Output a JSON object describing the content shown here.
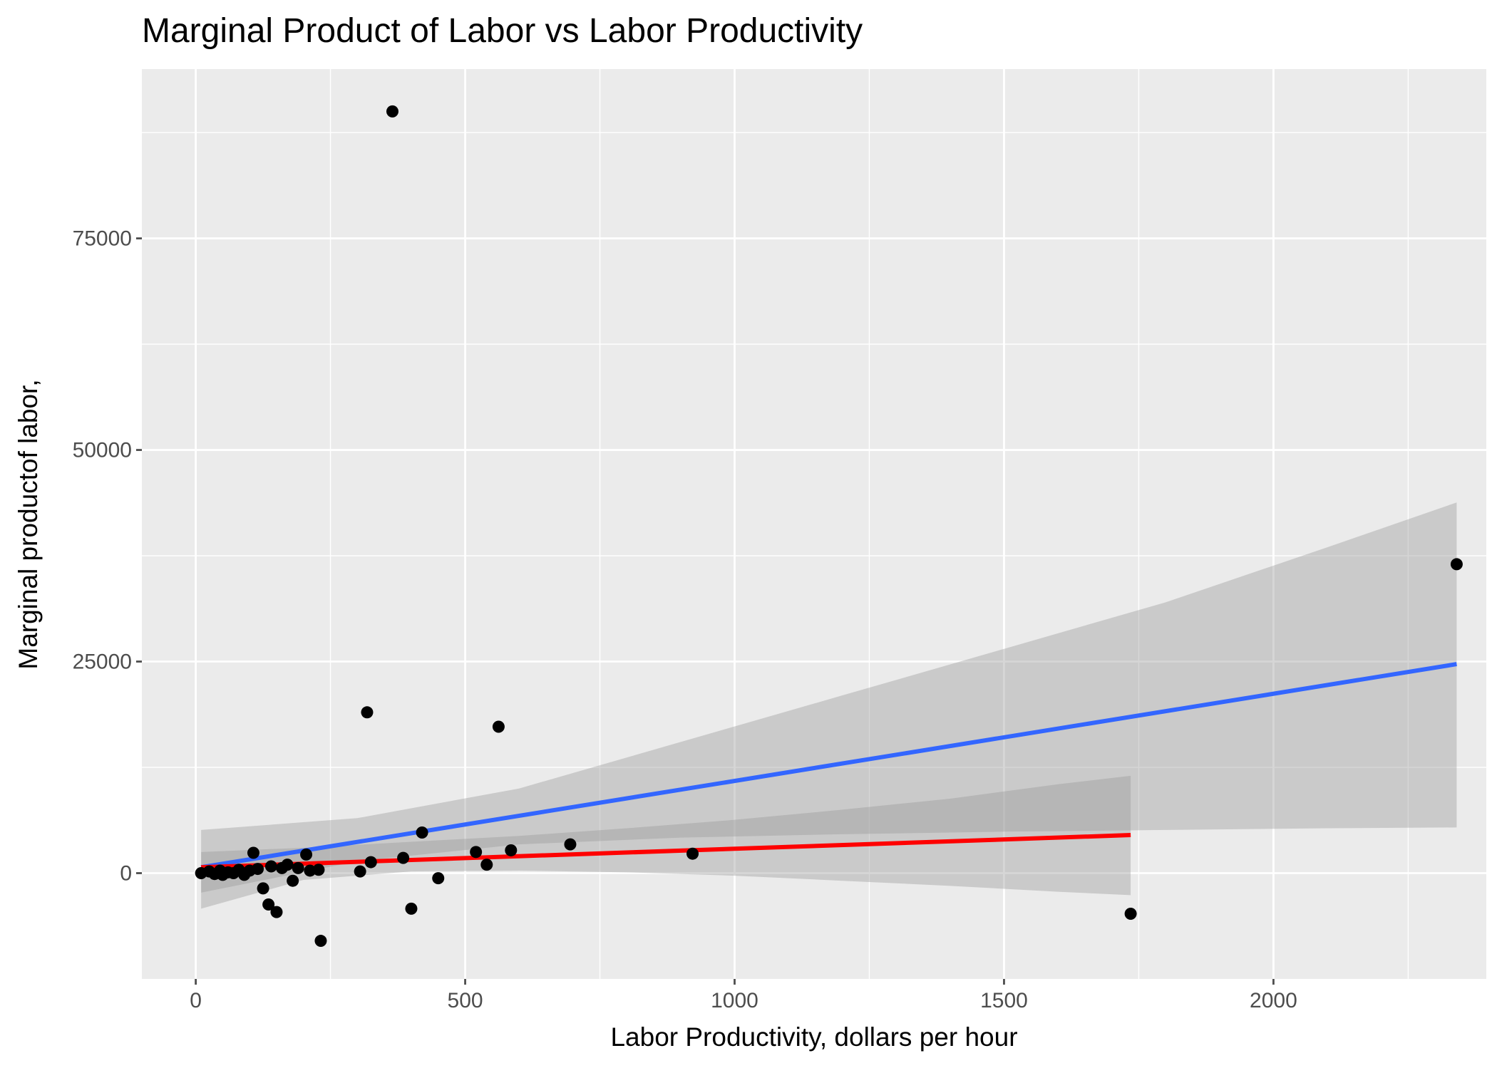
{
  "chart_data": {
    "type": "scatter",
    "title": "Marginal Product of Labor vs Labor Productivity",
    "xlabel": "Labor Productivity, dollars per hour",
    "ylabel": "Marginal productof labor,",
    "xlim": [
      -100,
      2395
    ],
    "ylim": [
      -12500,
      95000
    ],
    "x_ticks": [
      0,
      500,
      1000,
      1500,
      2000
    ],
    "x_tick_labels": [
      "0",
      "500",
      "1000",
      "1500",
      "2000"
    ],
    "y_ticks": [
      0,
      25000,
      50000,
      75000
    ],
    "y_tick_labels": [
      "0",
      "25000",
      "50000",
      "75000"
    ],
    "grid": true,
    "legend": "none",
    "colors": {
      "panel": "#EBEBEB",
      "grid": "#FFFFFF",
      "points": "#000000",
      "band": "#999999",
      "fit_blue": "#3366FF",
      "fit_red": "#FF0000",
      "tick": "#4D4D4D"
    },
    "points": [
      {
        "x": 10,
        "y": 0
      },
      {
        "x": 25,
        "y": 200
      },
      {
        "x": 35,
        "y": -100
      },
      {
        "x": 45,
        "y": 300
      },
      {
        "x": 50,
        "y": -200
      },
      {
        "x": 60,
        "y": 100
      },
      {
        "x": 70,
        "y": 0
      },
      {
        "x": 80,
        "y": 400
      },
      {
        "x": 90,
        "y": -200
      },
      {
        "x": 100,
        "y": 300
      },
      {
        "x": 107,
        "y": 2400
      },
      {
        "x": 115,
        "y": 500
      },
      {
        "x": 125,
        "y": -1800
      },
      {
        "x": 135,
        "y": -3700
      },
      {
        "x": 140,
        "y": 800
      },
      {
        "x": 150,
        "y": -4600
      },
      {
        "x": 160,
        "y": 600
      },
      {
        "x": 170,
        "y": 1000
      },
      {
        "x": 180,
        "y": -900
      },
      {
        "x": 190,
        "y": 600
      },
      {
        "x": 205,
        "y": 2200
      },
      {
        "x": 212,
        "y": 300
      },
      {
        "x": 228,
        "y": 400
      },
      {
        "x": 232,
        "y": -8000
      },
      {
        "x": 305,
        "y": 200
      },
      {
        "x": 318,
        "y": 19000
      },
      {
        "x": 325,
        "y": 1300
      },
      {
        "x": 365,
        "y": 90000
      },
      {
        "x": 385,
        "y": 1800
      },
      {
        "x": 400,
        "y": -4200
      },
      {
        "x": 420,
        "y": 4800
      },
      {
        "x": 450,
        "y": -600
      },
      {
        "x": 520,
        "y": 2500
      },
      {
        "x": 540,
        "y": 1000
      },
      {
        "x": 562,
        "y": 17300
      },
      {
        "x": 585,
        "y": 2700
      },
      {
        "x": 695,
        "y": 3400
      },
      {
        "x": 922,
        "y": 2300
      },
      {
        "x": 1735,
        "y": -4800
      },
      {
        "x": 2340,
        "y": 36500
      }
    ],
    "fits": [
      {
        "color": "blue",
        "x": [
          10,
          2340
        ],
        "y": [
          700,
          24700
        ],
        "band": {
          "x": [
            10,
            300,
            600,
            900,
            1200,
            1500,
            1800,
            2100,
            2340
          ],
          "lower": [
            -2300,
            1400,
            3400,
            4200,
            4600,
            4900,
            5100,
            5300,
            5400
          ],
          "upper": [
            5100,
            6500,
            10000,
            15500,
            21000,
            26500,
            32000,
            38500,
            43800
          ]
        }
      },
      {
        "color": "red",
        "x": [
          10,
          1735
        ],
        "y": [
          700,
          4500
        ],
        "band": {
          "x": [
            10,
            200,
            400,
            600,
            800,
            1000,
            1200,
            1400,
            1600,
            1735
          ],
          "lower": [
            -4200,
            -800,
            200,
            300,
            100,
            -300,
            -900,
            -1500,
            -2200,
            -2600
          ],
          "upper": [
            2500,
            3000,
            3700,
            4400,
            5300,
            6300,
            7500,
            8800,
            10500,
            11500
          ]
        }
      }
    ]
  }
}
